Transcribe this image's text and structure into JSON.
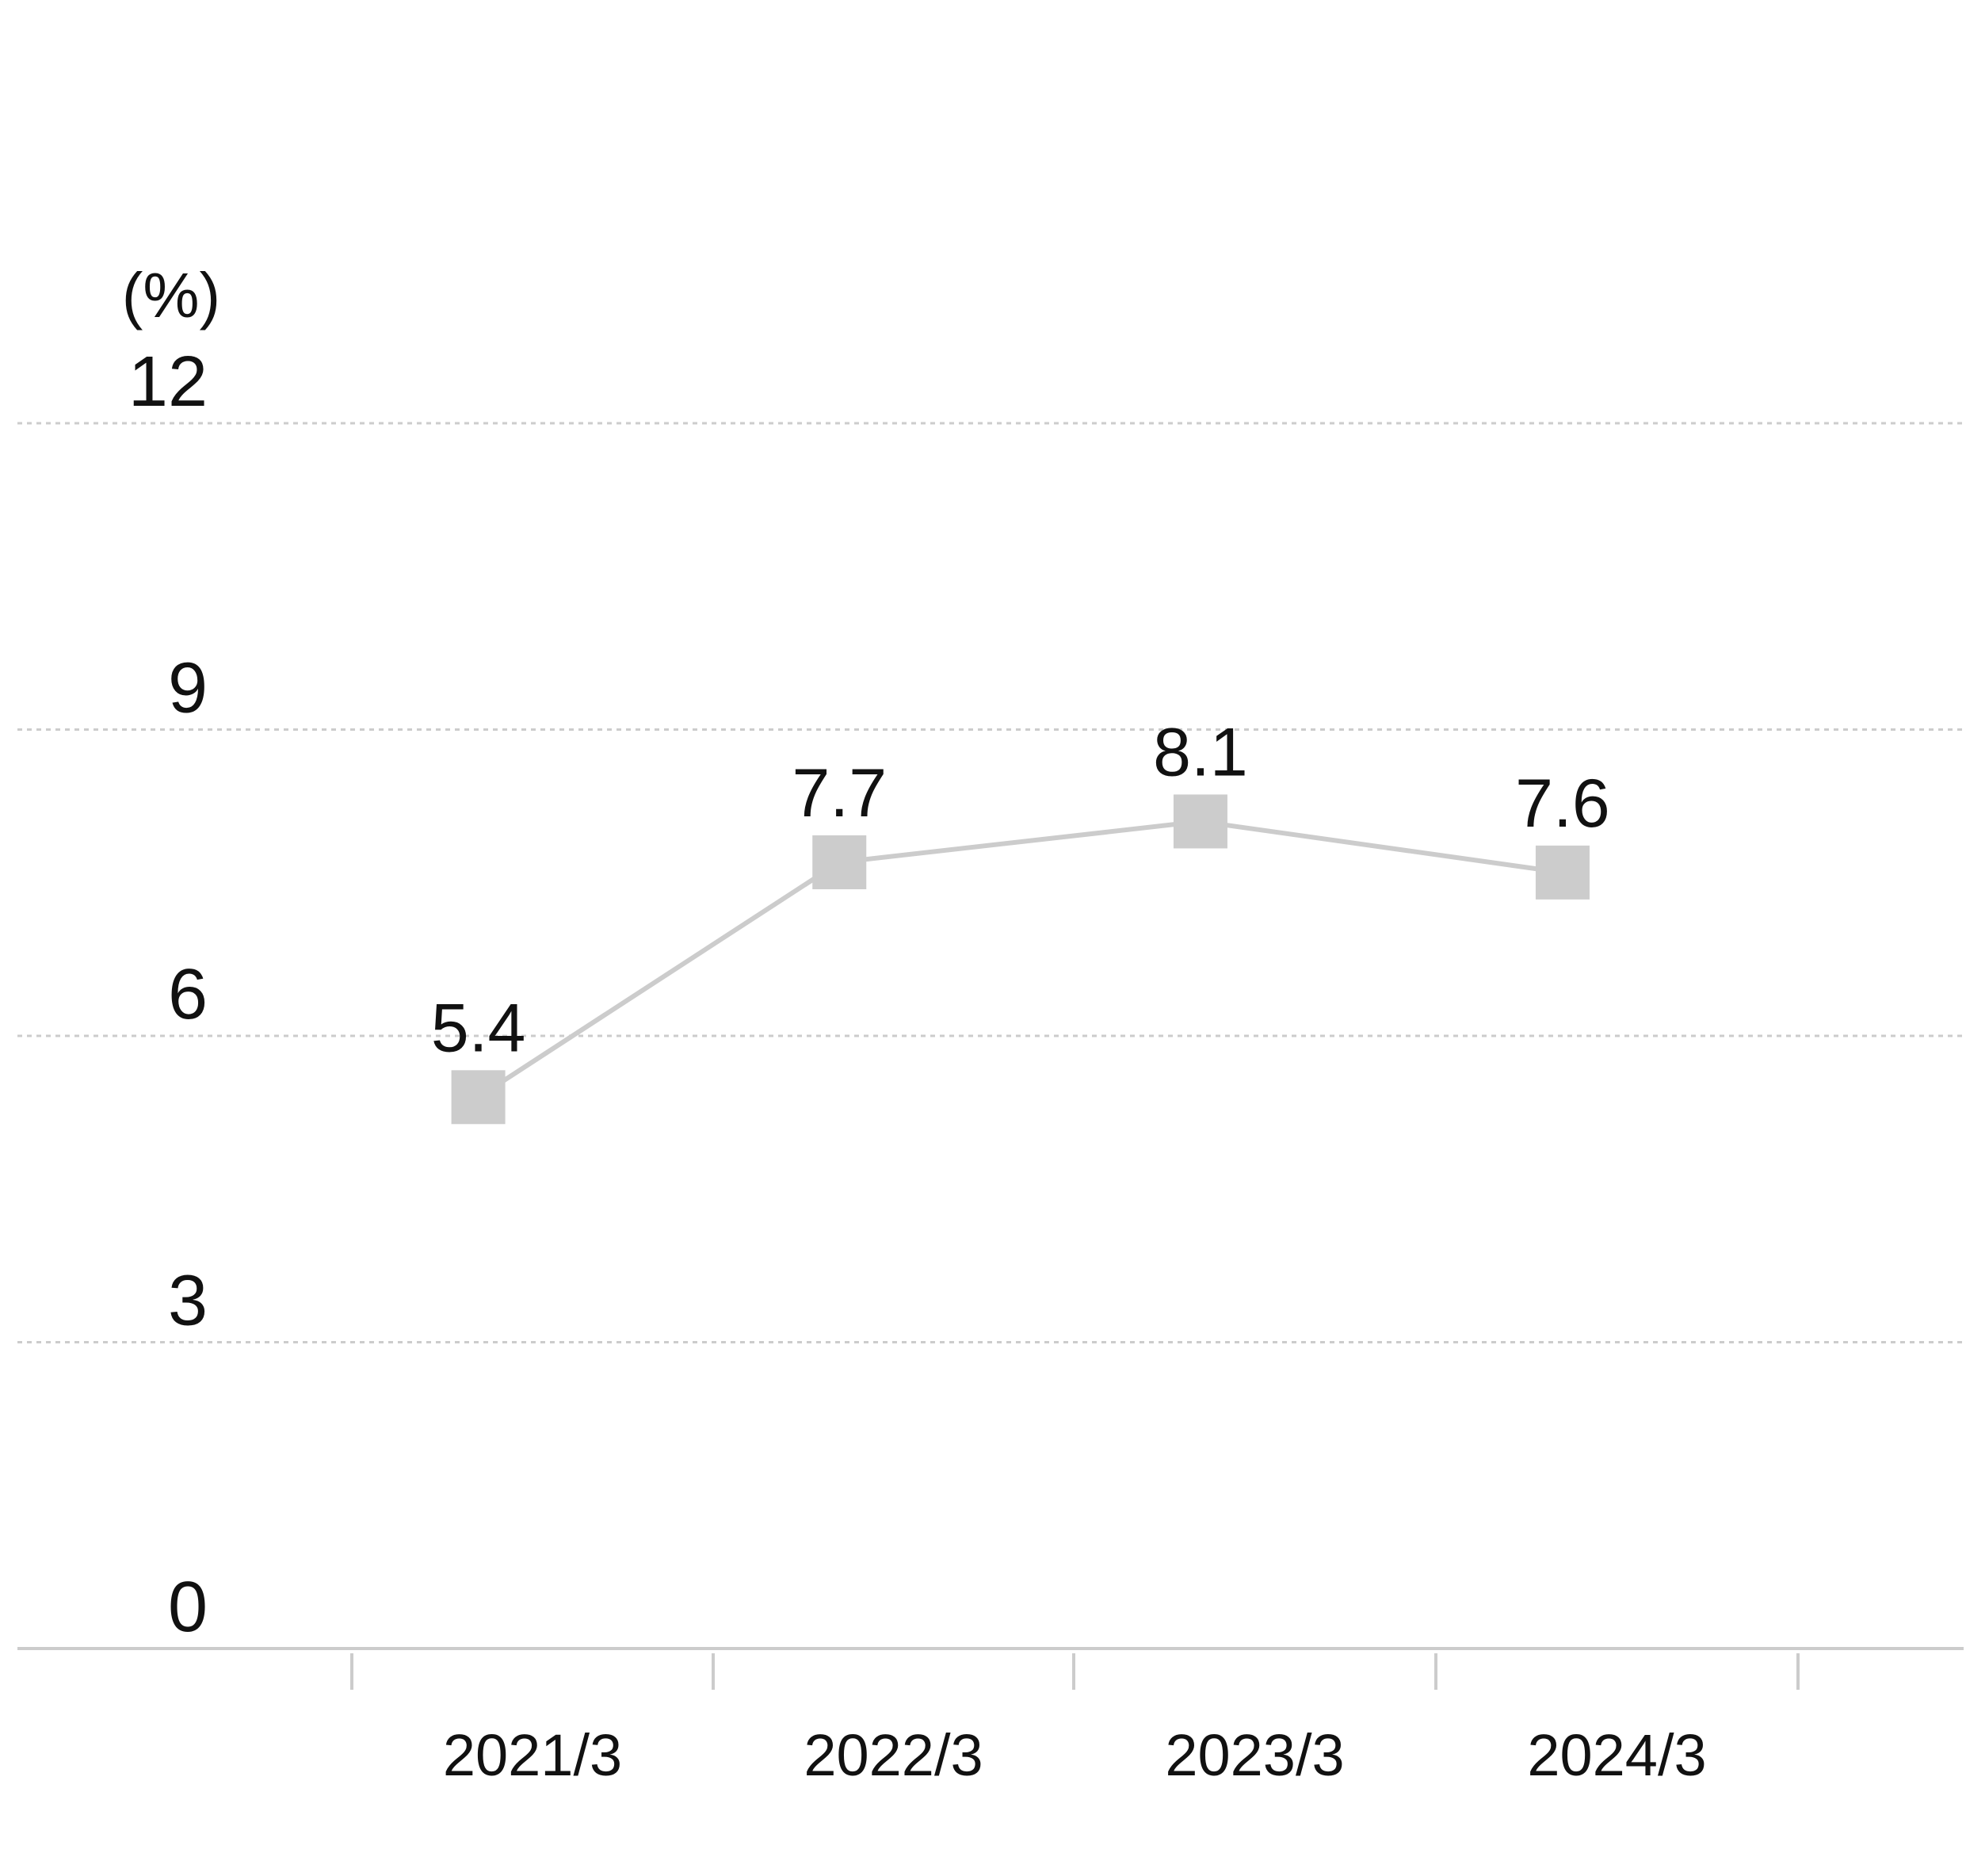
{
  "chart_data": {
    "type": "line",
    "title": "",
    "xlabel": "",
    "ylabel": "",
    "unit_label": "(%)",
    "categories": [
      "2021/3",
      "2022/3",
      "2023/3",
      "2024/3"
    ],
    "series": [
      {
        "values": [
          5.4,
          7.7,
          8.1,
          7.6
        ],
        "value_labels": [
          "5.4",
          "7.7",
          "8.1",
          "7.6"
        ],
        "color": "#cccccc",
        "marker": "square"
      }
    ],
    "yticks": [
      0,
      3,
      6,
      9,
      12
    ],
    "ytick_labels": [
      "0",
      "3",
      "6",
      "9",
      "12"
    ],
    "ylim": [
      0,
      12
    ],
    "grid": "horizontal dotted",
    "gridline_color": "#cccccc",
    "axis_color": "#cccccc",
    "legend": "none"
  }
}
